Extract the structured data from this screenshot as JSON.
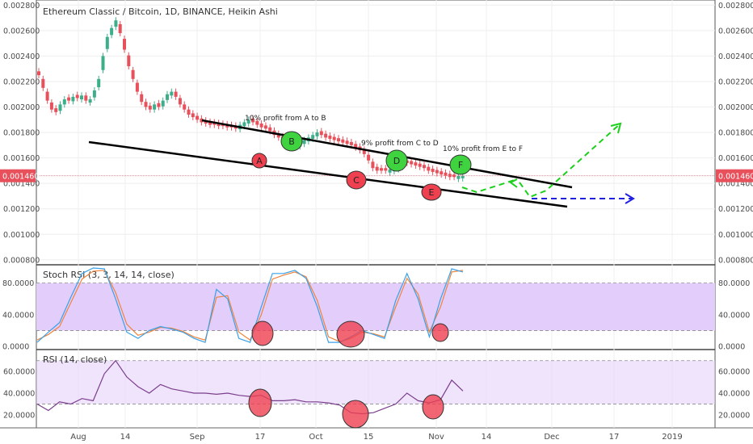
{
  "colors": {
    "up": "#3dae8a",
    "down": "#e8505b",
    "price_line": "#f05a6a",
    "trendline": "#000000",
    "green_arrow": "#1bd01b",
    "blue_arrow": "#2020e0",
    "stoch_k": "#3aa0e8",
    "stoch_d": "#f0843c",
    "band_fill": "#e3cdfb",
    "rsi_line": "#7a3f8c",
    "marker_red": "#ef4050",
    "marker_green": "#3fd43f"
  },
  "chart_data": [
    {
      "type": "candlestick",
      "title": "Ethereum Classic / Bitcoin, 1D, BINANCE, Heikin Ashi",
      "current_price": "0.001460",
      "y_ticks": [
        "0.002800",
        "0.002600",
        "0.002400",
        "0.002200",
        "0.002000",
        "0.001800",
        "0.001600",
        "0.001400",
        "0.001200",
        "0.001000",
        "0.000800"
      ],
      "y_range": [
        0.00078,
        0.00284
      ],
      "x_ticks": [
        "Aug",
        "14",
        "Sep",
        "17",
        "Oct",
        "15",
        "Nov",
        "14",
        "Dec",
        "17",
        "2019"
      ],
      "closes": [
        0.00225,
        0.00215,
        0.00205,
        0.00198,
        0.00196,
        0.00202,
        0.00206,
        0.00205,
        0.00208,
        0.00207,
        0.00209,
        0.00205,
        0.00206,
        0.00213,
        0.00222,
        0.0024,
        0.00255,
        0.00262,
        0.00268,
        0.00258,
        0.00245,
        0.00232,
        0.00222,
        0.00212,
        0.00204,
        0.002,
        0.00198,
        0.00202,
        0.002,
        0.00205,
        0.0021,
        0.00212,
        0.00208,
        0.00202,
        0.00198,
        0.00194,
        0.00192,
        0.0019,
        0.00188,
        0.00187,
        0.00186,
        0.00186,
        0.00185,
        0.00185,
        0.00184,
        0.00184,
        0.00183,
        0.00186,
        0.00188,
        0.0019,
        0.00188,
        0.00186,
        0.00184,
        0.00183,
        0.00181,
        0.00178,
        0.00176,
        0.00174,
        0.00172,
        0.00171,
        0.0017,
        0.00172,
        0.00174,
        0.00176,
        0.00178,
        0.0018,
        0.00178,
        0.00176,
        0.00175,
        0.00174,
        0.00173,
        0.00172,
        0.00171,
        0.0017,
        0.00168,
        0.00166,
        0.00163,
        0.00158,
        0.00152,
        0.0015,
        0.0015,
        0.0015,
        0.00151,
        0.00152,
        0.00154,
        0.00156,
        0.00156,
        0.00155,
        0.00154,
        0.00153,
        0.00152,
        0.0015,
        0.00149,
        0.00148,
        0.00147,
        0.00146,
        0.00145,
        0.00145,
        0.00146,
        0.00146
      ],
      "up": [
        false,
        false,
        false,
        false,
        false,
        true,
        true,
        false,
        true,
        false,
        true,
        false,
        true,
        true,
        true,
        true,
        true,
        true,
        true,
        false,
        false,
        false,
        false,
        false,
        false,
        false,
        false,
        true,
        false,
        true,
        true,
        true,
        false,
        false,
        false,
        false,
        false,
        false,
        false,
        false,
        false,
        false,
        false,
        false,
        false,
        false,
        false,
        true,
        true,
        true,
        false,
        false,
        false,
        false,
        false,
        false,
        false,
        false,
        false,
        false,
        false,
        true,
        true,
        true,
        true,
        true,
        false,
        false,
        false,
        false,
        false,
        false,
        false,
        false,
        false,
        false,
        false,
        false,
        false,
        false,
        false,
        false,
        true,
        true,
        true,
        true,
        false,
        false,
        false,
        false,
        false,
        false,
        false,
        false,
        false,
        false,
        false,
        false,
        true,
        true
      ],
      "annotations": [
        "10% profit from A to B",
        "9% profit from C to D",
        "10% profit from E to F"
      ],
      "markers": [
        {
          "label": "A",
          "kind": "red"
        },
        {
          "label": "B",
          "kind": "green"
        },
        {
          "label": "C",
          "kind": "red"
        },
        {
          "label": "D",
          "kind": "green"
        },
        {
          "label": "E",
          "kind": "red"
        },
        {
          "label": "F",
          "kind": "green"
        }
      ]
    },
    {
      "type": "line",
      "title": "Stoch RSI (3, 3, 14, 14, close)",
      "y_ticks": [
        "80.0000",
        "40.0000",
        "0.0000"
      ],
      "y_range": [
        -2,
        100
      ],
      "band": [
        20,
        80
      ],
      "series": [
        {
          "key": "k",
          "values": [
            5,
            18,
            30,
            62,
            92,
            99,
            98,
            60,
            18,
            10,
            20,
            25,
            22,
            18,
            10,
            5,
            72,
            60,
            10,
            5,
            50,
            92,
            92,
            96,
            86,
            50,
            5,
            5,
            12,
            20,
            15,
            10,
            58,
            92,
            60,
            12,
            60,
            98,
            94
          ]
        },
        {
          "key": "d",
          "values": [
            8,
            15,
            25,
            55,
            85,
            95,
            96,
            68,
            28,
            14,
            18,
            24,
            23,
            19,
            12,
            8,
            62,
            64,
            18,
            8,
            40,
            85,
            90,
            94,
            88,
            58,
            12,
            6,
            10,
            18,
            16,
            12,
            50,
            86,
            66,
            18,
            50,
            94,
            96
          ]
        }
      ]
    },
    {
      "type": "line",
      "title": "RSI (14, close)",
      "y_ticks": [
        "60.0000",
        "40.0000",
        "20.0000"
      ],
      "y_range": [
        8,
        78
      ],
      "band": [
        30,
        70
      ],
      "series": [
        {
          "key": "rsi",
          "values": [
            30,
            24,
            32,
            30,
            35,
            33,
            58,
            70,
            55,
            46,
            40,
            48,
            44,
            42,
            40,
            40,
            39,
            40,
            38,
            37,
            38,
            33,
            33,
            34,
            32,
            32,
            31,
            29,
            22,
            21,
            22,
            26,
            30,
            40,
            33,
            31,
            34,
            52,
            42
          ]
        }
      ]
    }
  ],
  "circles": {
    "stoch": [
      {
        "kind": "red"
      },
      {
        "kind": "red"
      },
      {
        "kind": "red"
      }
    ],
    "rsi": [
      {
        "kind": "red"
      },
      {
        "kind": "red"
      },
      {
        "kind": "red"
      }
    ]
  }
}
